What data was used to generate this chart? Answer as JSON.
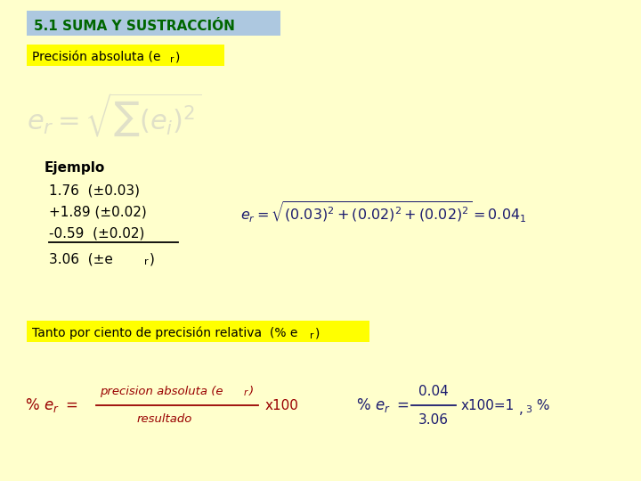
{
  "bg_color": "#ffffcc",
  "title_text": "5.1 SUMA Y SUSTRACCIÓN",
  "title_bg": "#adc8e0",
  "title_color": "#006600",
  "label1_bg": "#ffff00",
  "label1_color": "#000000",
  "formula_bg_color": "#e8e8d8",
  "ejemplo_text": "Ejemplo",
  "row1": "1.76  (±0.03)",
  "row2": "+1.89 (±0.02)",
  "row3": "-0.59  (±0.02)",
  "row4": "3.06  (±e",
  "eq_color": "#1a1a6e",
  "label2_bg": "#ffff00",
  "label2_color": "#000000",
  "formula2_color": "#990000",
  "dark_color": "#1a1a6e"
}
